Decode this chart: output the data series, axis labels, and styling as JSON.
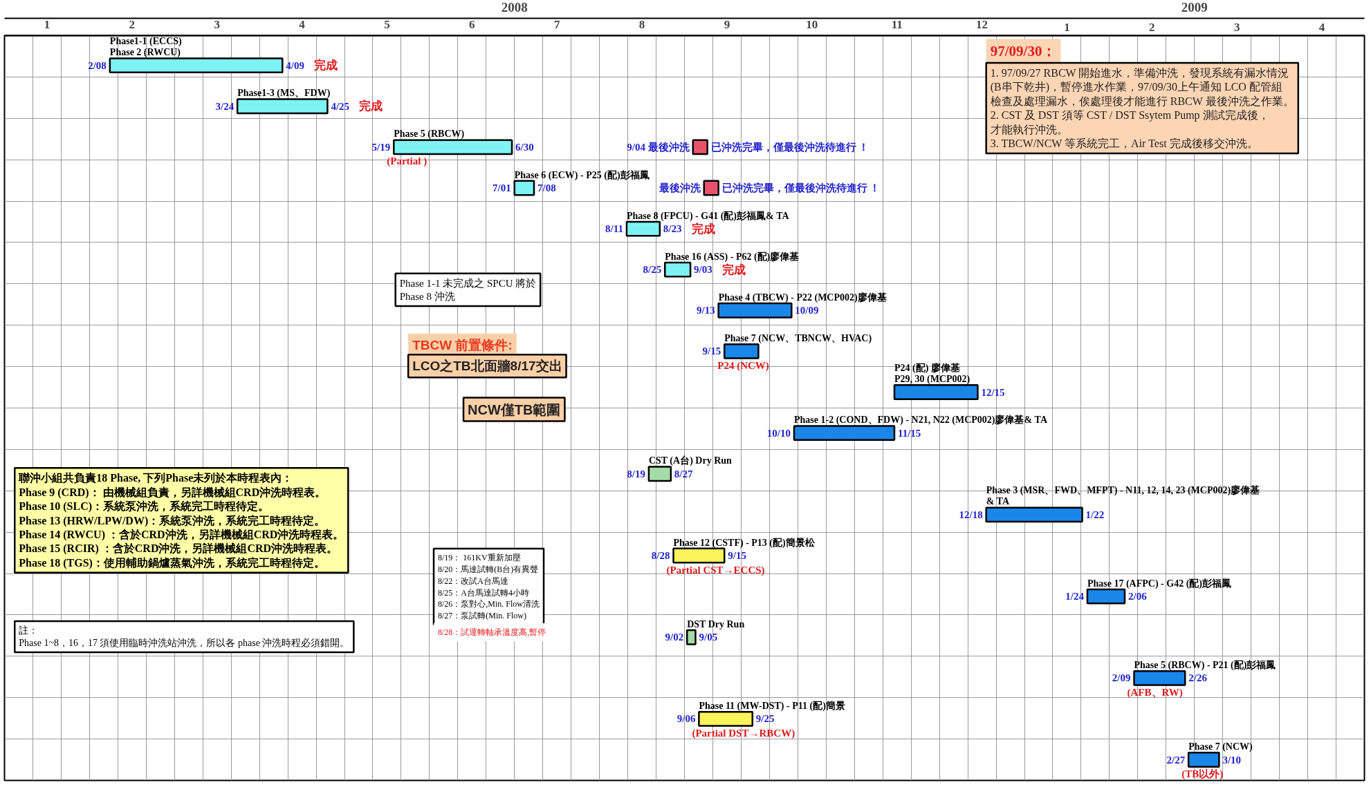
{
  "chart_data": {
    "type": "bar",
    "orientation": "horizontal",
    "categories": [
      "Phase1-1 (ECCS)\nPhase 2   (RWCU)",
      "Phase1-3 (MS、FDW)",
      "Phase 5 (RBCW)",
      "Phase 6 (ECW) - P25 (配)彭福鳳",
      "Phase 8 (FPCU) - G41 (配)彭福鳳& TA",
      "Phase 16 (ASS) - P62 (配)廖偉基",
      "Phase 4 (TBCW) - P22 (MCP002)廖偉基",
      "Phase 7 (NCW、TBNCW、HVAC)",
      "P24 (配) 廖偉基\nP29, 30 (MCP002)",
      "Phase 1-2 (COND、FDW) - N21, N22 (MCP002)廖偉基& TA",
      "CST (A台) Dry Run",
      "Phase 3 (MSR、FWD、MFPT) - N11, 12, 14, 23 (MCP002)廖偉基\n& TA",
      "Phase 12 (CSTF) - P13 (配)簡景松",
      "Phase 17 (AFPC) - G42 (配)彭福鳳",
      "DST Dry Run",
      "Phase 5 (RBCW) - P21 (配)彭福鳳",
      "Phase 11 (MW-DST) - P11 (配)簡景",
      "Phase 7 (NCW)"
    ],
    "series": [
      {
        "base": [
          1.74,
          3.24,
          5.08,
          6.5,
          7.82,
          8.27,
          8.9,
          8.97,
          10.97,
          9.79,
          8.08,
          12.05,
          8.37,
          13.24,
          8.53,
          13.79,
          8.67,
          14.43
        ],
        "values": [
          2.03,
          1.06,
          1.39,
          0.23,
          0.39,
          0.3,
          0.86,
          0.4,
          0.98,
          1.18,
          0.26,
          1.13,
          0.6,
          0.44,
          0.1,
          0.6,
          0.63,
          0.36
        ],
        "colors": [
          "#7ef3f3",
          "#7ef3f3",
          "#7ef3f3",
          "#7ef3f3",
          "#7ef3f3",
          "#7ef3f3",
          "#1a86e8",
          "#1a86e8",
          "#1a86e8",
          "#1a86e8",
          "#a3dca8",
          "#1a86e8",
          "#fbf35a",
          "#1a86e8",
          "#a3dca8",
          "#1a86e8",
          "#fbf35a",
          "#1a86e8"
        ]
      },
      {
        "base": [
          null,
          null,
          8.6,
          8.73,
          null,
          null,
          null,
          null,
          null,
          null,
          null,
          null,
          null,
          null,
          null,
          null,
          null,
          null
        ],
        "values": [
          null,
          null,
          0.17,
          0.17,
          null,
          null,
          null,
          null,
          null,
          null,
          null,
          null,
          null,
          null,
          null,
          null,
          null,
          null
        ],
        "colors": [
          null,
          null,
          "#e8536b",
          "#e8536b",
          null,
          null,
          null,
          null,
          null,
          null,
          null,
          null,
          null,
          null,
          null,
          null,
          null,
          null
        ]
      }
    ],
    "xlim": [
      0.5,
      16.5
    ],
    "xticks": [
      1,
      2,
      3,
      4,
      5,
      6,
      7,
      8,
      9,
      10,
      11,
      12
    ],
    "x2lim": [
      -11.5,
      4.5
    ],
    "x2ticks": [
      1,
      2,
      3,
      4
    ],
    "tick_labels": "x",
    "grid": true,
    "annotations": [
      "2008",
      "2009",
      "97/09/30：",
      "1. 97/09/27 RBCW 開始進水，準備沖洗，發現系統有漏水情況(B串下乾井)，暫停進水作業，97/09/30上午通知 LCO 配管組檢查及處理漏水，俟處理後才能進行 RBCW 最後沖洗之作業。\n2. CST 及 DST 須等 CST / DST Ssytem Pump 測試完成後，才能執行沖洗。\n3. TBCW/NCW 等系統完工，Air Test 完成後移交沖洗。",
      "Phase 1-1 未完成之 SPCU 將於 Phase 8 沖洗",
      "TBCW 前置條件:",
      "LCO之TB北面牆8/17交出",
      "NCW僅TB範圍",
      "聯沖小組共負責18 Phase, 下列Phase未列於本時程表內：\nPhase 9 (CRD)： 由機械組負責，另詳機械組CRD沖洗時程表。\nPhase 10 (SLC)：系統泵沖洗，系統完工時程待定。\nPhase 13 (HRW/LPW/DW)：系統泵沖洗，系統完工時程待定。\nPhase 14 (RWCU) ：含於CRD沖洗，另詳機械組CRD沖洗時程表。\nPhase 15 (RCIR) ：含於CRD沖洗，另詳機械組CRD沖洗時程表。\nPhase 18 (TGS)：使用輔助鍋爐蒸氣沖洗，系統完工時程待定。",
      "註：\nPhase 1~8，16，17 須使用臨時沖洗站沖洗，所以各 phase 沖洗時程必須錯開。",
      "8/19： 161KV重新加壓\n8/20：馬達試轉(B台)有異聲\n8/22：改試A台馬達\n8/25：A台馬達試轉4小時\n8/26：泵對心,Min. Flow清洗\n8/27：泵試轉(Min. Flow)",
      "8/28：試運轉軸承溫度高,暫停",
      "完成",
      "完成",
      "完成",
      "完成",
      {
        "text": "2/08",
        "x": 1.74,
        "y": "Phase1-1 (ECCS)\nPhase 2   (RWCU)"
      },
      {
        "text": "4/09",
        "x": 3.77,
        "y": "Phase1-1 (ECCS)\nPhase 2   (RWCU)"
      },
      {
        "text": "3/24",
        "x": 3.24,
        "y": "Phase1-3 (MS、FDW)"
      },
      {
        "text": "4/25",
        "x": 4.3,
        "y": "Phase1-3 (MS、FDW)"
      },
      {
        "text": "5/19",
        "x": 5.08,
        "y": "Phase 5 (RBCW)"
      },
      {
        "text": "(Partial )",
        "x": 5.08,
        "y": "Phase 5 (RBCW)"
      },
      {
        "text": "6/30",
        "x": 6.47,
        "y": "Phase 5 (RBCW)"
      },
      {
        "text": "9/04 最後沖洗",
        "x": 8.6,
        "y": "Phase 5 (RBCW)"
      },
      {
        "text": "已沖洗完畢，僅最後沖洗待進行 ！",
        "x": 8.77,
        "y": "Phase 5 (RBCW)"
      },
      {
        "text": "7/01",
        "x": 6.5,
        "y": "Phase 6 (ECW) - P25 (配)彭福鳳"
      },
      {
        "text": "7/08",
        "x": 6.73,
        "y": "Phase 6 (ECW) - P25 (配)彭福鳳"
      },
      {
        "text": "最後沖洗",
        "x": 8.73,
        "y": "Phase 6 (ECW) - P25 (配)彭福鳳"
      },
      {
        "text": "已沖洗完畢，僅最後沖洗待進行 ！",
        "x": 8.9,
        "y": "Phase 6 (ECW) - P25 (配)彭福鳳"
      },
      {
        "text": "8/11",
        "x": 7.82,
        "y": "Phase 8 (FPCU) - G41 (配)彭福鳳& TA"
      },
      {
        "text": "8/23",
        "x": 8.21,
        "y": "Phase 8 (FPCU) - G41 (配)彭福鳳& TA"
      },
      {
        "text": "8/25",
        "x": 8.27,
        "y": "Phase 16 (ASS) - P62 (配)廖偉基"
      },
      {
        "text": "9/03",
        "x": 8.57,
        "y": "Phase 16 (ASS) - P62 (配)廖偉基"
      },
      {
        "text": "9/13",
        "x": 8.9,
        "y": "Phase 4 (TBCW) - P22 (MCP002)廖偉基"
      },
      {
        "text": "10/09",
        "x": 9.76,
        "y": "Phase 4 (TBCW) - P22 (MCP002)廖偉基"
      },
      {
        "text": "9/15",
        "x": 8.97,
        "y": "Phase 7 (NCW、TBNCW、HVAC)"
      },
      {
        "text": "P24 (NCW)",
        "x": 8.97,
        "y": "Phase 7 (NCW、TBNCW、HVAC)"
      },
      {
        "text": "12/15",
        "x": 11.95,
        "y": "P24 (配) 廖偉基\nP29, 30 (MCP002)"
      },
      {
        "text": "10/10",
        "x": 9.79,
        "y": "Phase 1-2 (COND、FDW) - N21, N22 (MCP002)廖偉基& TA"
      },
      {
        "text": "11/15",
        "x": 10.97,
        "y": "Phase 1-2 (COND、FDW) - N21, N22 (MCP002)廖偉基& TA"
      },
      {
        "text": "8/19",
        "x": 8.08,
        "y": "CST (A台) Dry Run"
      },
      {
        "text": "8/27",
        "x": 8.34,
        "y": "CST (A台) Dry Run"
      },
      {
        "text": "12/18",
        "x": 12.05,
        "y": "Phase 3 (MSR、FWD、MFPT) - N11, 12, 14, 23 (MCP002)廖偉基\n& TA"
      },
      {
        "text": "1/22",
        "x": 13.18,
        "y": "Phase 3 (MSR、FWD、MFPT) - N11, 12, 14, 23 (MCP002)廖偉基\n& TA"
      },
      {
        "text": "8/28",
        "x": 8.37,
        "y": "Phase 12 (CSTF) - P13 (配)簡景松"
      },
      {
        "text": "(Partial CST→ECCS)",
        "x": 8.37,
        "y": "Phase 12 (CSTF) - P13 (配)簡景松"
      },
      {
        "text": "9/15",
        "x": 8.97,
        "y": "Phase 12 (CSTF) - P13 (配)簡景松"
      },
      {
        "text": "1/24",
        "x": 13.24,
        "y": "Phase 17 (AFPC) - G42 (配)彭福鳳"
      },
      {
        "text": "2/06",
        "x": 13.68,
        "y": "Phase 17 (AFPC) - G42 (配)彭福鳳"
      },
      {
        "text": "9/02",
        "x": 8.53,
        "y": "DST Dry Run"
      },
      {
        "text": "9/05",
        "x": 8.63,
        "y": "DST Dry Run"
      },
      {
        "text": "2/09",
        "x": 13.79,
        "y": "Phase 5 (RBCW) - P21 (配)彭福鳳"
      },
      {
        "text": "(AFB、RW)",
        "x": 13.79,
        "y": "Phase 5 (RBCW) - P21 (配)彭福鳳"
      },
      {
        "text": "2/26",
        "x": 14.39,
        "y": "Phase 5 (RBCW) - P21 (配)彭福鳳"
      },
      {
        "text": "9/06",
        "x": 8.67,
        "y": "Phase 11 (MW-DST) - P11 (配)簡景"
      },
      {
        "text": "(Partial DST→RBCW)",
        "x": 8.67,
        "y": "Phase 11 (MW-DST) - P11 (配)簡景"
      },
      {
        "text": "9/25",
        "x": 9.3,
        "y": "Phase 11 (MW-DST) - P11 (配)簡景"
      },
      {
        "text": "2/27",
        "x": 14.43,
        "y": "Phase 7 (NCW)"
      },
      {
        "text": "(TB以外)",
        "x": 14.43,
        "y": "Phase 7 (NCW)"
      },
      {
        "text": "3/10",
        "x": 14.79,
        "y": "Phase 7 (NCW)"
      }
    ]
  }
}
